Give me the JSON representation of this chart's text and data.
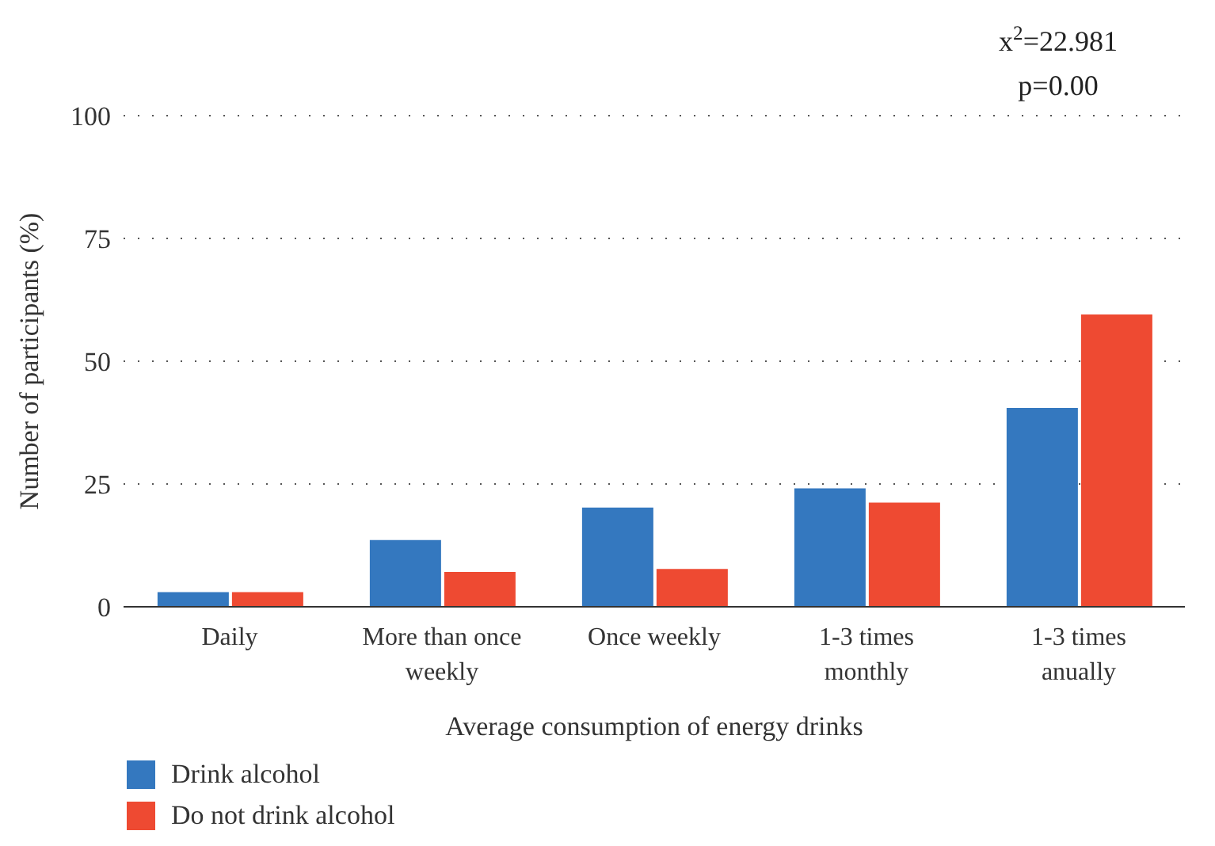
{
  "chart_data": {
    "type": "bar",
    "xlabel": "Average consumption of energy drinks",
    "ylabel": "Number of participants (%)",
    "categories": [
      "Daily",
      "More than once weekly",
      "Once weekly",
      "1-3 times monthly",
      "1-3 times anually"
    ],
    "series": [
      {
        "name": "Drink alcohol",
        "color": "#3478bf",
        "values": [
          3,
          13.6,
          20.2,
          24.1,
          40.5
        ]
      },
      {
        "name": "Do not drink alcohol",
        "color": "#ee4a32",
        "values": [
          3,
          7.1,
          7.7,
          21.2,
          59.5
        ]
      }
    ],
    "ylim": [
      0,
      100
    ],
    "yticks": [
      0,
      25,
      50,
      75,
      100
    ],
    "grid": "y",
    "legend": "bottom left",
    "annotations": [
      "x$^{2}$=22.981",
      "p=0.00"
    ]
  }
}
